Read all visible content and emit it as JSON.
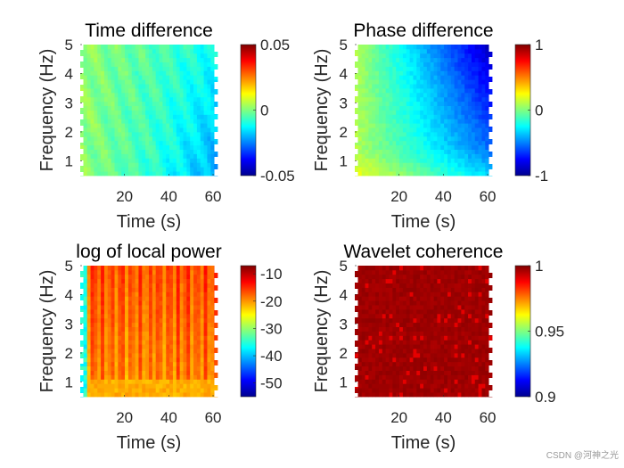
{
  "chart_data": [
    {
      "type": "heatmap",
      "title": "Time difference",
      "xlabel": "Time (s)",
      "ylabel": "Frequency (Hz)",
      "xlim": [
        0,
        62
      ],
      "ylim": [
        0.5,
        5
      ],
      "xticks": [
        20,
        40,
        60
      ],
      "yticks": [
        1,
        2,
        3,
        4,
        5
      ],
      "clim": [
        -0.05,
        0.05
      ],
      "colorbar_ticks": [
        -0.05,
        0,
        0.05
      ],
      "colorbar_tick_labels": [
        "-0.05",
        "0",
        "0.05"
      ],
      "pattern": "timediff"
    },
    {
      "type": "heatmap",
      "title": "Phase difference",
      "xlabel": "Time (s)",
      "ylabel": "Frequency (Hz)",
      "xlim": [
        0,
        62
      ],
      "ylim": [
        0.5,
        5
      ],
      "xticks": [
        20,
        40,
        60
      ],
      "yticks": [
        1,
        2,
        3,
        4,
        5
      ],
      "clim": [
        -1,
        1
      ],
      "colorbar_ticks": [
        -1,
        0,
        1
      ],
      "colorbar_tick_labels": [
        "-1",
        "0",
        "1"
      ],
      "pattern": "phasediff"
    },
    {
      "type": "heatmap",
      "title": "log of local power",
      "xlabel": "Time (s)",
      "ylabel": "Frequency (Hz)",
      "xlim": [
        0,
        62
      ],
      "ylim": [
        0.5,
        5
      ],
      "xticks": [
        20,
        40,
        60
      ],
      "yticks": [
        1,
        2,
        3,
        4,
        5
      ],
      "clim": [
        -55,
        -7
      ],
      "colorbar_ticks": [
        -50,
        -40,
        -30,
        -20,
        -10
      ],
      "colorbar_tick_labels": [
        "-50",
        "-40",
        "-30",
        "-20",
        "-10"
      ],
      "pattern": "power"
    },
    {
      "type": "heatmap",
      "title": "Wavelet coherence",
      "xlabel": "Time (s)",
      "ylabel": "Frequency (Hz)",
      "xlim": [
        0,
        62
      ],
      "ylim": [
        0.5,
        5
      ],
      "xticks": [
        20,
        40,
        60
      ],
      "yticks": [
        1,
        2,
        3,
        4,
        5
      ],
      "clim": [
        0.9,
        1
      ],
      "colorbar_ticks": [
        0.9,
        0.95,
        1
      ],
      "colorbar_tick_labels": [
        "0.9",
        "0.95",
        "1"
      ],
      "pattern": "coherence"
    }
  ],
  "watermark": "CSDN @河神之光"
}
